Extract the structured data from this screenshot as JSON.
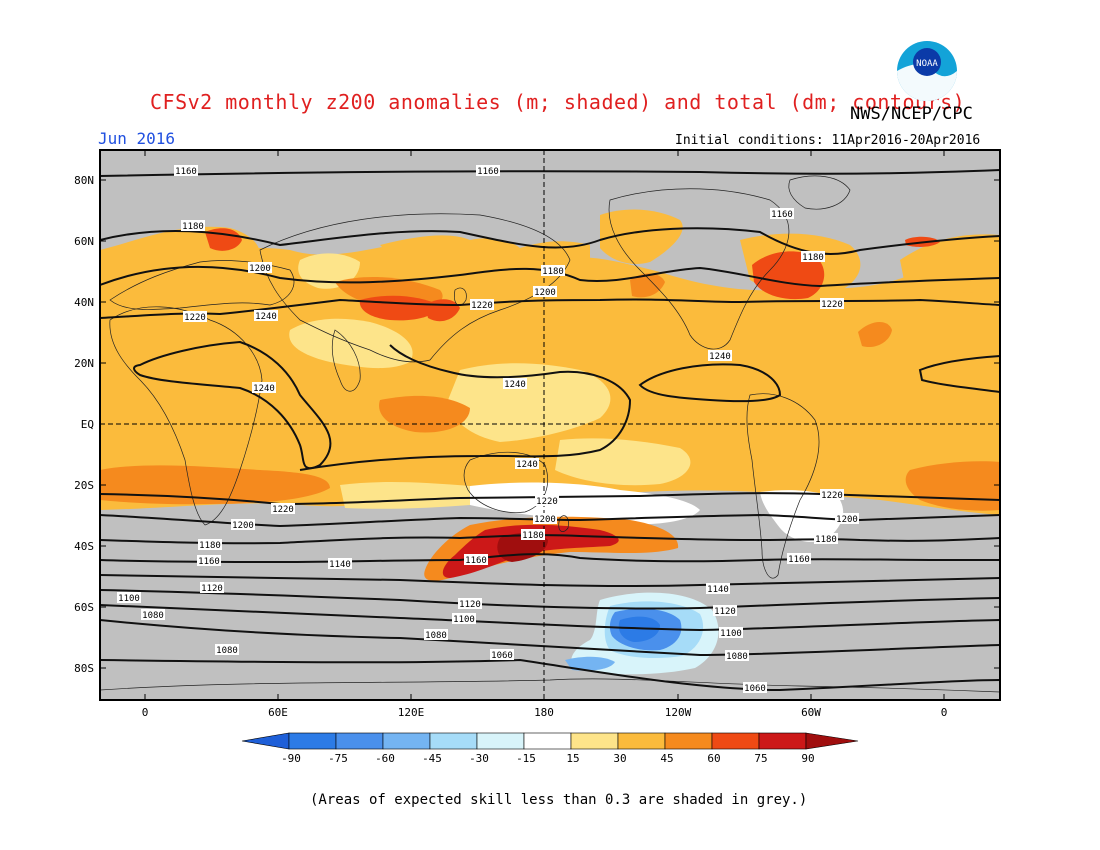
{
  "title": "CFSv2 monthly z200 anomalies (m; shaded) and total (dm; contours)",
  "org": "NWS/NCEP/CPC",
  "period": "Jun 2016",
  "initial_conditions": "Initial conditions: 11Apr2016-20Apr2016",
  "logo_text": "NOAA",
  "footnote": "(Areas of expected skill less than 0.3 are shaded in grey.)",
  "colors": {
    "skill_grey": "#c0c0c0",
    "neg90": "#1e5fd8",
    "neg75": "#2c7be6",
    "neg60": "#4a90ec",
    "neg45": "#74b4f2",
    "neg30": "#a6dcf8",
    "neg15": "#d8f4fa",
    "neutral": "#ffffff",
    "pos15": "#fde48a",
    "pos30": "#fbbb3c",
    "pos45": "#f58a1e",
    "pos60": "#ef4a14",
    "pos75": "#cc1818",
    "pos90": "#a00e0e",
    "title_red": "#e02020",
    "period_blue": "#2050e0"
  },
  "axes": {
    "lat_labels": [
      "80N",
      "60N",
      "40N",
      "20N",
      "EQ",
      "20S",
      "40S",
      "60S",
      "80S"
    ],
    "lon_labels": [
      "0",
      "60E",
      "120E",
      "180",
      "120W",
      "60W",
      "0"
    ]
  },
  "colorbar": {
    "labels": [
      "-90",
      "-75",
      "-60",
      "-45",
      "-30",
      "-15",
      "15",
      "30",
      "45",
      "60",
      "75",
      "90"
    ]
  },
  "contours": [
    {
      "label": "1160"
    },
    {
      "label": "1160"
    },
    {
      "label": "1180"
    },
    {
      "label": "1160"
    },
    {
      "label": "1200"
    },
    {
      "label": "1180"
    },
    {
      "label": "1180"
    },
    {
      "label": "1200"
    },
    {
      "label": "1220"
    },
    {
      "label": "1240"
    },
    {
      "label": "1220"
    },
    {
      "label": "1220"
    },
    {
      "label": "1240"
    },
    {
      "label": "1240"
    },
    {
      "label": "1240"
    },
    {
      "label": "1240"
    },
    {
      "label": "1220"
    },
    {
      "label": "1220"
    },
    {
      "label": "1220"
    },
    {
      "label": "1200"
    },
    {
      "label": "1200"
    },
    {
      "label": "1200"
    },
    {
      "label": "1180"
    },
    {
      "label": "1180"
    },
    {
      "label": "1180"
    },
    {
      "label": "1160"
    },
    {
      "label": "1160"
    },
    {
      "label": "1160"
    },
    {
      "label": "1140"
    },
    {
      "label": "1140"
    },
    {
      "label": "1120"
    },
    {
      "label": "1120"
    },
    {
      "label": "1120"
    },
    {
      "label": "1100"
    },
    {
      "label": "1100"
    },
    {
      "label": "1100"
    },
    {
      "label": "1080"
    },
    {
      "label": "1080"
    },
    {
      "label": "1080"
    },
    {
      "label": "1080"
    },
    {
      "label": "1060"
    },
    {
      "label": "1060"
    }
  ]
}
